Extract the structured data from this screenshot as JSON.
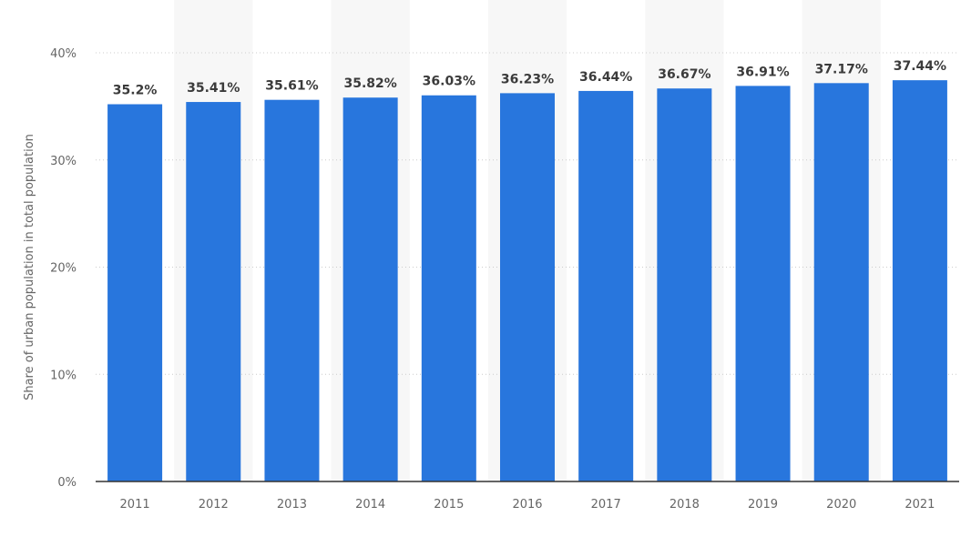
{
  "chart_data": {
    "type": "bar",
    "categories": [
      "2011",
      "2012",
      "2013",
      "2014",
      "2015",
      "2016",
      "2017",
      "2018",
      "2019",
      "2020",
      "2021"
    ],
    "values": [
      35.2,
      35.41,
      35.61,
      35.82,
      36.03,
      36.23,
      36.44,
      36.67,
      36.91,
      37.17,
      37.44
    ],
    "value_labels": [
      "35.2%",
      "35.41%",
      "35.61%",
      "35.82%",
      "36.03%",
      "36.23%",
      "36.44%",
      "36.67%",
      "36.91%",
      "37.17%",
      "37.44%"
    ],
    "ylabel": "Share of urban population in total population",
    "xlabel": "",
    "ylim": [
      0,
      40
    ],
    "yticks": [
      0,
      10,
      20,
      30,
      40
    ],
    "ytick_labels": [
      "0%",
      "10%",
      "20%",
      "30%",
      "40%"
    ],
    "grid": "horizontal dotted",
    "legend": "none",
    "colors": {
      "bar": "#2876dd",
      "alt_column_band": "#f7f7f7",
      "grid": "#cccccc",
      "axis": "#333333",
      "data_label": "#3b3b3b",
      "tick_label": "#666666"
    }
  }
}
